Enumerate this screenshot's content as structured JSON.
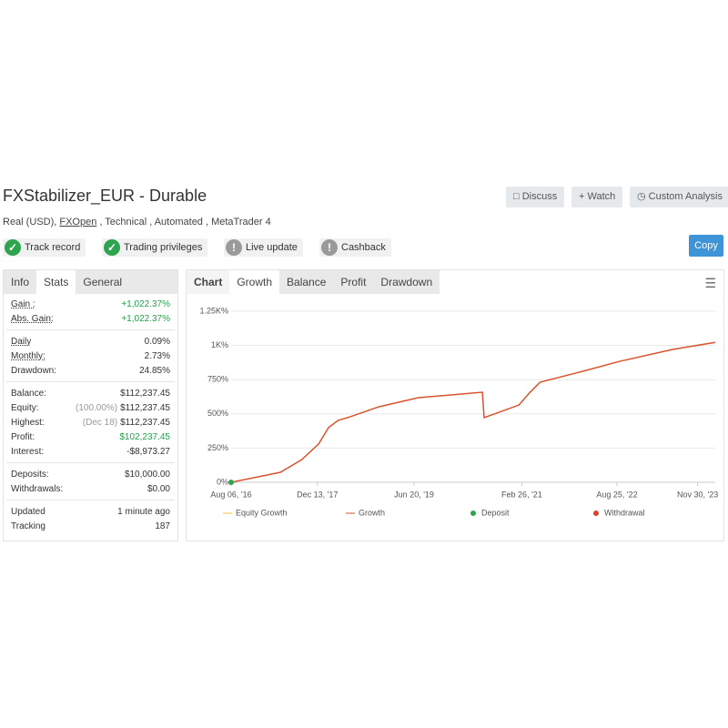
{
  "header": {
    "title": "FXStabilizer_EUR - Durable",
    "subtitle": [
      "Real (USD),",
      "FXOpen",
      ", Technical , Automated , MetaTrader 4"
    ],
    "buttons": [
      "Discuss",
      "Watch",
      "Custom Analysis"
    ],
    "copy": "Copy"
  },
  "badges": [
    {
      "label": "Track record",
      "ok": true
    },
    {
      "label": "Trading privileges",
      "ok": true
    },
    {
      "label": "Live update",
      "ok": false
    },
    {
      "label": "Cashback",
      "ok": false
    }
  ],
  "stats": {
    "tabs": [
      "Info",
      "Stats",
      "General"
    ],
    "active": 1,
    "groups": [
      [
        {
          "label": "Gain :",
          "value": "+1,022.37%",
          "green": true,
          "underline": true
        },
        {
          "label": "Abs. Gain:",
          "value": "+1,022.37%",
          "green": true,
          "underline": true
        }
      ],
      [
        {
          "label": "Daily",
          "value": "0.09%",
          "underline": true
        },
        {
          "label": "Monthly:",
          "value": "2.73%",
          "underline": true
        },
        {
          "label": "Drawdown:",
          "value": "24.85%"
        }
      ],
      [
        {
          "label": "Balance:",
          "value": "$112,237.45"
        },
        {
          "label": "Equity:",
          "note": "(100.00%)",
          "value": "$112,237.45"
        },
        {
          "label": "Highest:",
          "note": "(Dec 18)",
          "value": "$112,237.45"
        },
        {
          "label": "Profit:",
          "value": "$102,237.45",
          "green": true
        },
        {
          "label": "Interest:",
          "value": "-$8,973.27"
        }
      ],
      [
        {
          "label": "Deposits:",
          "value": "$10,000.00"
        },
        {
          "label": "Withdrawals:",
          "value": "$0.00"
        }
      ],
      [
        {
          "label": "Updated",
          "value": "1 minute ago"
        },
        {
          "label": "Tracking",
          "value": "187"
        }
      ]
    ]
  },
  "chart_tabs": {
    "tabs": [
      "Chart",
      "Growth",
      "Balance",
      "Profit",
      "Drawdown"
    ],
    "active": 1
  },
  "chart_data": {
    "type": "line",
    "x": [
      "2016-08-06",
      "2017-05-15",
      "2017-09-15",
      "2017-12-20",
      "2018-02-15",
      "2018-04-10",
      "2018-06-20",
      "2018-12-01",
      "2019-07-15",
      "2020-07-15",
      "2020-07-25",
      "2021-02-10",
      "2021-04-10",
      "2021-06-10",
      "2022-02-10",
      "2022-09-10",
      "2023-07-10",
      "2024-03-10"
    ],
    "series": [
      {
        "name": "Growth",
        "color": "#d9542c",
        "values": [
          0,
          73,
          166,
          280,
          400,
          452,
          479,
          552,
          618,
          658,
          472,
          565,
          652,
          731,
          811,
          884,
          971,
          1022.37
        ]
      }
    ],
    "legend": [
      {
        "name": "Equity Growth",
        "color": "#f5c342",
        "kind": "line"
      },
      {
        "name": "Growth",
        "color": "#d9542c",
        "kind": "line"
      },
      {
        "name": "Deposit",
        "color": "#2ea44f",
        "kind": "dot"
      },
      {
        "name": "Withdrawal",
        "color": "#d9442c",
        "kind": "dot"
      }
    ],
    "xlim": [
      "2016-08-06",
      "2024-03-10"
    ],
    "xticks": [
      {
        "value": "2016-08-06",
        "label": "Aug 06, '16"
      },
      {
        "value": "2017-12-13",
        "label": "Dec 13, '17"
      },
      {
        "value": "2019-06-20",
        "label": "Jun 20, '19"
      },
      {
        "value": "2021-02-26",
        "label": "Feb 26, '21"
      },
      {
        "value": "2022-08-25",
        "label": "Aug 25, '22"
      },
      {
        "value": "2023-11-30",
        "label": "Nov 30, '23"
      }
    ],
    "ylim": [
      0,
      1250
    ],
    "yticks": [
      {
        "value": 0,
        "label": "0%"
      },
      {
        "value": 250,
        "label": "250%"
      },
      {
        "value": 500,
        "label": "500%"
      },
      {
        "value": 750,
        "label": "750%"
      },
      {
        "value": 1000,
        "label": "1K%"
      },
      {
        "value": 1250,
        "label": "1.25K%"
      }
    ],
    "grid": true
  }
}
